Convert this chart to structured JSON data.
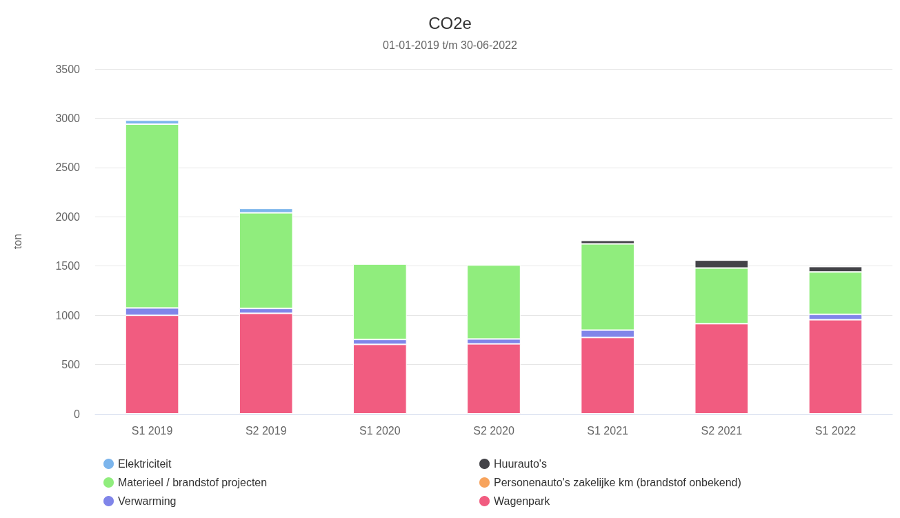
{
  "chart_data": {
    "type": "bar",
    "title": "CO2e",
    "subtitle": "01-01-2019 t/m 30-06-2022",
    "ylabel": "ton",
    "categories": [
      "S1 2019",
      "S2 2019",
      "S1 2020",
      "S2 2020",
      "S1 2021",
      "S2 2021",
      "S1 2022"
    ],
    "stacked": true,
    "ylim": [
      0,
      3500
    ],
    "yticks": [
      0,
      500,
      1000,
      1500,
      2000,
      2500,
      3000,
      3500
    ],
    "grid": "y",
    "legend": "bottom",
    "series": [
      {
        "name": "Wagenpark",
        "color": "#f15c80",
        "values": [
          1000,
          1020,
          705,
          710,
          775,
          915,
          955
        ]
      },
      {
        "name": "Verwarming",
        "color": "#8085e9",
        "values": [
          75,
          50,
          50,
          50,
          75,
          null,
          55
        ]
      },
      {
        "name": "Personenauto's zakelijke km (brandstof onbekend)",
        "color": "#f7a35c",
        "values": [
          null,
          null,
          null,
          null,
          null,
          null,
          null
        ]
      },
      {
        "name": "Materieel / brandstof projecten",
        "color": "#90ed7d",
        "values": [
          1865,
          970,
          765,
          750,
          875,
          565,
          430
        ]
      },
      {
        "name": "Huurauto's",
        "color": "#434348",
        "values": [
          null,
          null,
          null,
          null,
          35,
          80,
          55
        ]
      },
      {
        "name": "Elektriciteit",
        "color": "#7cb5ec",
        "values": [
          40,
          45,
          null,
          null,
          null,
          null,
          null
        ]
      }
    ]
  }
}
